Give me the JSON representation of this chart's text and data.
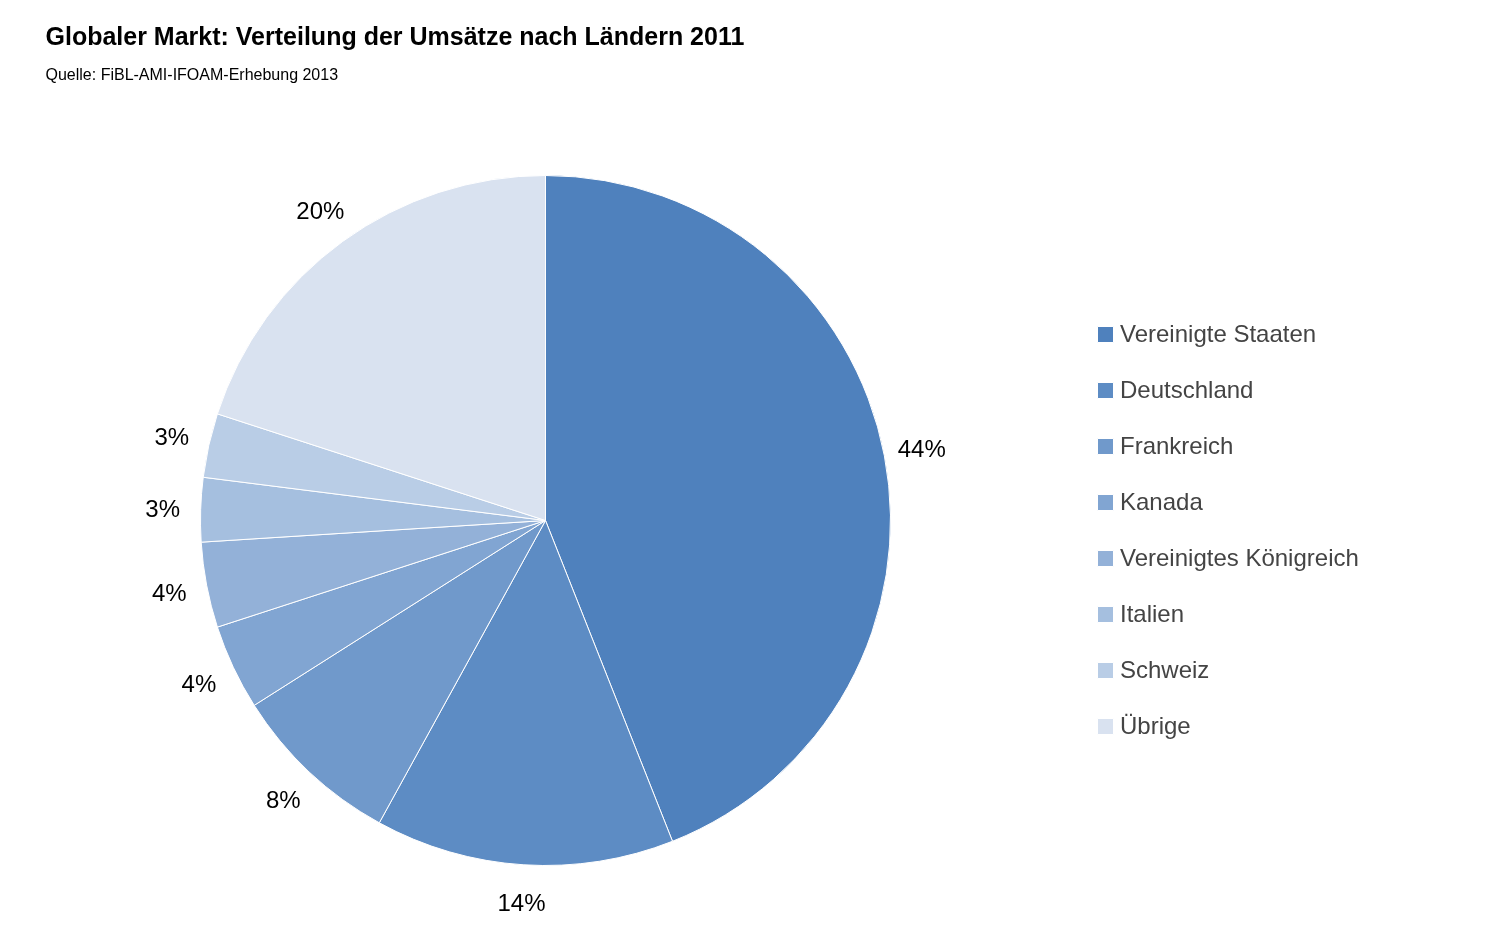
{
  "chart_data": {
    "type": "pie",
    "title": "Globaler Markt: Verteilung der Umsätze nach Ländern 2011",
    "subtitle": "Quelle: FiBL-AMI-IFOAM-Erhebung 2013",
    "categories": [
      "Vereinigte Staaten",
      "Deutschland",
      "Frankreich",
      "Kanada",
      "Vereinigtes Königreich",
      "Italien",
      "Schweiz",
      "Übrige"
    ],
    "values": [
      44,
      14,
      8,
      4,
      4,
      3,
      3,
      20
    ],
    "value_labels": [
      "44%",
      "14%",
      "8%",
      "4%",
      "4%",
      "3%",
      "3%",
      "20%"
    ],
    "colors": [
      "#4f81bd",
      "#5d8cc4",
      "#7099cb",
      "#81a5d2",
      "#93b1d8",
      "#a5bfdf",
      "#b9cde6",
      "#d9e2f0"
    ],
    "legend": "right"
  }
}
